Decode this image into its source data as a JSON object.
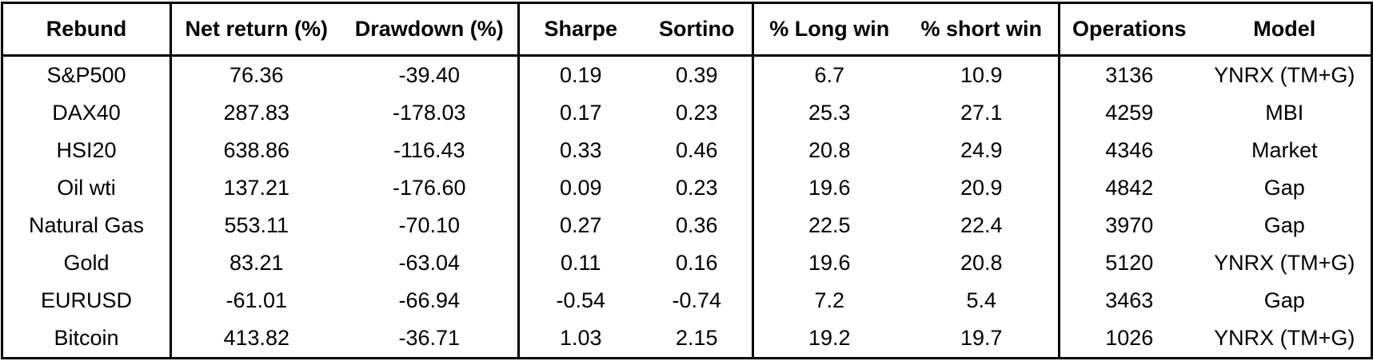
{
  "table": {
    "header": [
      "Rebund",
      "Net return (%)",
      "Drawdown (%)",
      "Sharpe",
      "Sortino",
      "% Long win",
      "% short win",
      "Operations",
      "Model"
    ],
    "rows": [
      [
        "S&P500",
        "76.36",
        "-39.40",
        "0.19",
        "0.39",
        "6.7",
        "10.9",
        "3136",
        "YNRX (TM+G)"
      ],
      [
        "DAX40",
        "287.83",
        "-178.03",
        "0.17",
        "0.23",
        "25.3",
        "27.1",
        "4259",
        "MBI"
      ],
      [
        "HSI20",
        "638.86",
        "-116.43",
        "0.33",
        "0.46",
        "20.8",
        "24.9",
        "4346",
        "Market"
      ],
      [
        "Oil wti",
        "137.21",
        "-176.60",
        "0.09",
        "0.23",
        "19.6",
        "20.9",
        "4842",
        "Gap"
      ],
      [
        "Natural Gas",
        "553.11",
        "-70.10",
        "0.27",
        "0.36",
        "22.5",
        "22.4",
        "3970",
        "Gap"
      ],
      [
        "Gold",
        "83.21",
        "-63.04",
        "0.11",
        "0.16",
        "19.6",
        "20.8",
        "5120",
        "YNRX (TM+G)"
      ],
      [
        "EURUSD",
        "-61.01",
        "-66.94",
        "-0.54",
        "-0.74",
        "7.2",
        "5.4",
        "3463",
        "Gap"
      ],
      [
        "Bitcoin",
        "413.82",
        "-36.71",
        "1.03",
        "2.15",
        "19.2",
        "19.7",
        "1026",
        "YNRX (TM+G)"
      ]
    ]
  }
}
